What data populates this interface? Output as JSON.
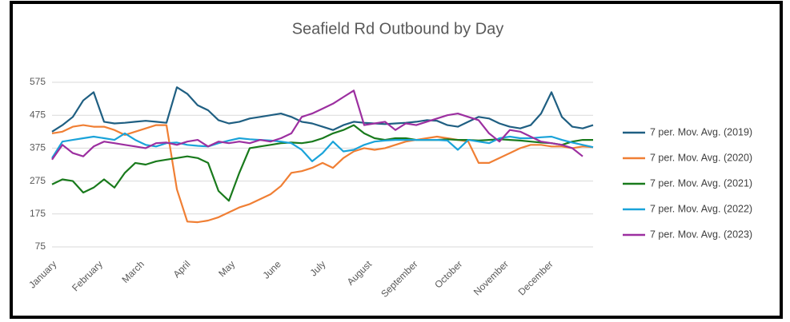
{
  "chart_data": {
    "type": "line",
    "title": "Seafield Rd Outbound by Day",
    "x": [
      1,
      8,
      15,
      22,
      29,
      36,
      43,
      50,
      57,
      64,
      71,
      78,
      85,
      92,
      99,
      106,
      113,
      120,
      127,
      134,
      141,
      148,
      155,
      162,
      169,
      176,
      183,
      190,
      197,
      204,
      211,
      218,
      225,
      232,
      239,
      246,
      253,
      260,
      267,
      274,
      281,
      288,
      295,
      302,
      309,
      316,
      323,
      330,
      337,
      344,
      351,
      358,
      365
    ],
    "xlim": [
      1,
      365
    ],
    "xticks": [
      {
        "value": 1,
        "label": "January"
      },
      {
        "value": 32,
        "label": "February"
      },
      {
        "value": 60,
        "label": "March"
      },
      {
        "value": 91,
        "label": "April"
      },
      {
        "value": 121,
        "label": "May"
      },
      {
        "value": 152,
        "label": "June"
      },
      {
        "value": 182,
        "label": "July"
      },
      {
        "value": 213,
        "label": "August"
      },
      {
        "value": 244,
        "label": "September"
      },
      {
        "value": 274,
        "label": "October"
      },
      {
        "value": 305,
        "label": "November"
      },
      {
        "value": 335,
        "label": "December"
      }
    ],
    "ylim": [
      75,
      575
    ],
    "yticks": [
      75,
      175,
      275,
      375,
      475,
      575
    ],
    "grid": true,
    "legend": "right",
    "series": [
      {
        "name": "7 per. Mov. Avg. (2019)",
        "color": "#1f5f82",
        "values": [
          425,
          445,
          470,
          520,
          545,
          455,
          450,
          452,
          455,
          458,
          455,
          452,
          560,
          540,
          505,
          490,
          460,
          450,
          455,
          465,
          470,
          475,
          480,
          470,
          455,
          450,
          440,
          430,
          445,
          455,
          452,
          450,
          448,
          450,
          452,
          455,
          460,
          458,
          445,
          440,
          455,
          470,
          465,
          450,
          440,
          435,
          445,
          480,
          545,
          470,
          440,
          435,
          445
        ]
      },
      {
        "name": "7 per. Mov. Avg. (2020)",
        "color": "#f07f34",
        "values": [
          420,
          425,
          440,
          445,
          440,
          440,
          430,
          415,
          425,
          435,
          445,
          445,
          250,
          152,
          150,
          155,
          165,
          180,
          195,
          205,
          220,
          235,
          260,
          300,
          305,
          315,
          330,
          315,
          345,
          365,
          375,
          370,
          375,
          385,
          395,
          400,
          405,
          410,
          405,
          400,
          395,
          330,
          330,
          345,
          360,
          375,
          385,
          385,
          380,
          380,
          375,
          380,
          378
        ]
      },
      {
        "name": "7 per. Mov. Avg. (2021)",
        "color": "#197a1c",
        "values": [
          265,
          280,
          275,
          240,
          255,
          280,
          255,
          300,
          330,
          325,
          335,
          340,
          345,
          350,
          345,
          330,
          245,
          215,
          300,
          375,
          380,
          385,
          390,
          392,
          390,
          395,
          405,
          420,
          430,
          445,
          420,
          405,
          400,
          405,
          405,
          400,
          400,
          400,
          402,
          400,
          400,
          398,
          400,
          402,
          400,
          398,
          395,
          392,
          390,
          385,
          395,
          400,
          400
        ]
      },
      {
        "name": "7 per. Mov. Avg. (2022)",
        "color": "#1aa3d9",
        "values": [
          345,
          395,
          400,
          405,
          410,
          405,
          400,
          420,
          400,
          385,
          380,
          390,
          392,
          385,
          382,
          380,
          390,
          398,
          405,
          402,
          400,
          398,
          395,
          390,
          370,
          335,
          360,
          395,
          365,
          370,
          385,
          395,
          398,
          400,
          400,
          400,
          400,
          400,
          398,
          370,
          400,
          395,
          390,
          405,
          410,
          405,
          405,
          408,
          410,
          400,
          392,
          385,
          378
        ]
      },
      {
        "name": "7 per. Mov. Avg. (2023)",
        "color": "#9c2fa0",
        "values": [
          340,
          385,
          360,
          350,
          380,
          395,
          390,
          385,
          380,
          375,
          390,
          392,
          385,
          395,
          400,
          380,
          395,
          390,
          395,
          390,
          400,
          395,
          405,
          420,
          470,
          480,
          495,
          510,
          530,
          550,
          445,
          450,
          455,
          430,
          450,
          445,
          455,
          465,
          475,
          480,
          470,
          460,
          420,
          395,
          430,
          425,
          410,
          395,
          390,
          385,
          375,
          350,
          null
        ]
      }
    ]
  }
}
